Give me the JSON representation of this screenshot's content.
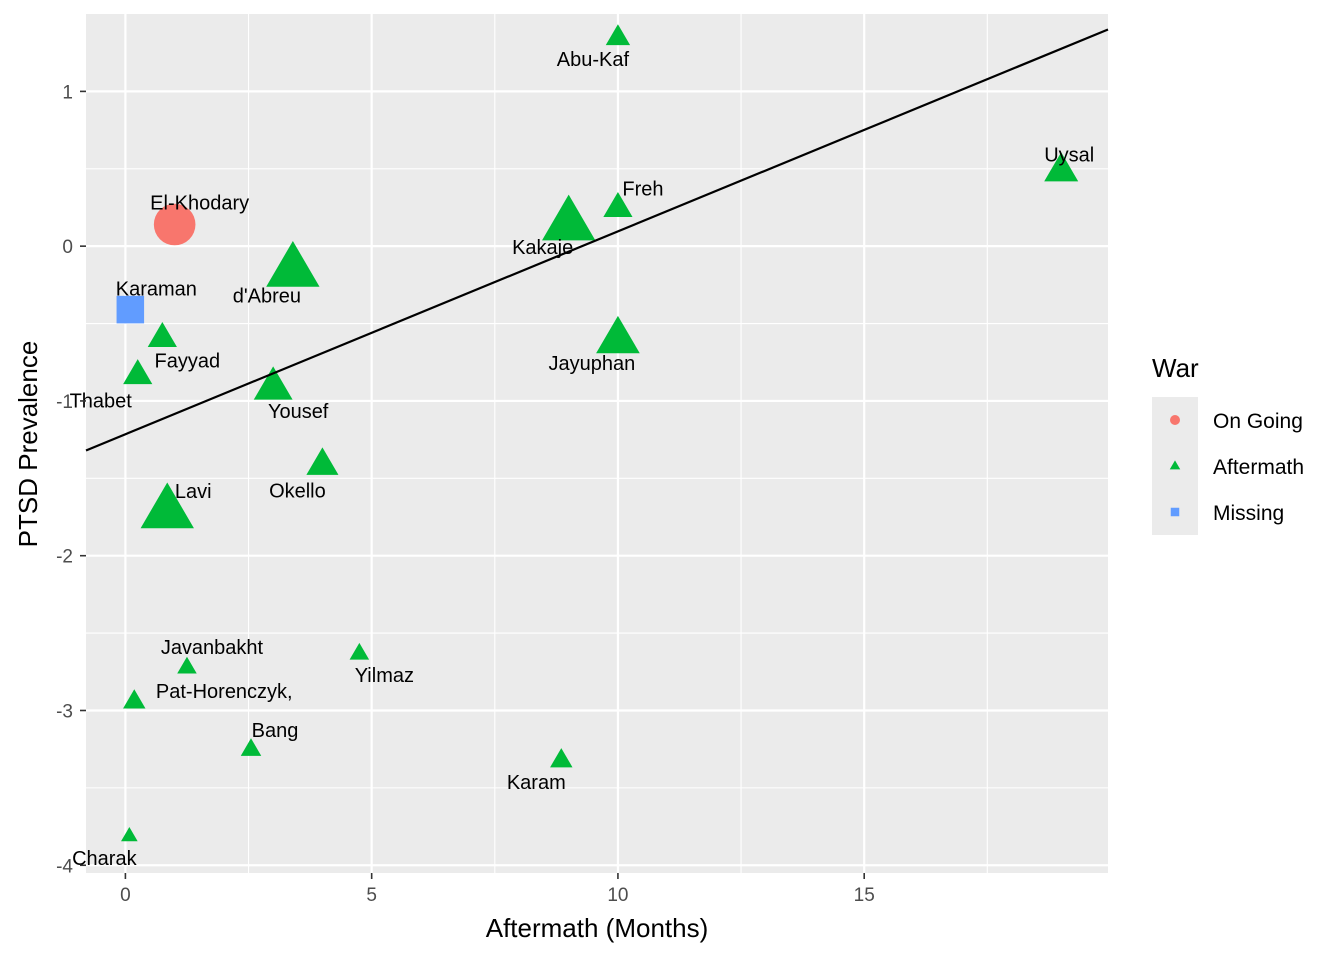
{
  "chart_data": {
    "type": "scatter",
    "title": "",
    "xlabel": "Aftermath (Months)",
    "ylabel": "PTSD Prevalence",
    "xlim": [
      -0.8,
      19.95
    ],
    "ylim": [
      -4.05,
      1.5
    ],
    "x_ticks": [
      0,
      5,
      10,
      15
    ],
    "y_ticks": [
      1,
      0,
      -1,
      -2,
      -3,
      -4
    ],
    "x_tick_labels": [
      "0",
      "5",
      "10",
      "15"
    ],
    "y_tick_labels": [
      "1",
      "0",
      "-1",
      "-2",
      "-3",
      "-4"
    ],
    "grid": true,
    "panel_background": "#ebebeb",
    "legend": {
      "title": "War",
      "position": "right",
      "entries": [
        {
          "label": "On Going",
          "shape": "circle",
          "color": "#f8766d"
        },
        {
          "label": "Aftermath",
          "shape": "triangle",
          "color": "#00ba38"
        },
        {
          "label": "Missing",
          "shape": "square",
          "color": "#619cff"
        }
      ]
    },
    "regression_line": {
      "color": "#000000",
      "x": [
        -0.8,
        19.95
      ],
      "y": [
        -1.32,
        1.4
      ]
    },
    "points": [
      {
        "label": "Abu-Kaf",
        "x": 10.0,
        "y": 1.35,
        "group": "Aftermath",
        "size": 1
      },
      {
        "label": "Uysal",
        "x": 19.0,
        "y": 0.49,
        "group": "Aftermath",
        "size": 2
      },
      {
        "label": "Freh",
        "x": 10.0,
        "y": 0.25,
        "group": "Aftermath",
        "size": 1.5
      },
      {
        "label": "El-Khodary",
        "x": 1.0,
        "y": 0.14,
        "group": "On Going",
        "size": 3
      },
      {
        "label": "Kakaje",
        "x": 9.0,
        "y": 0.15,
        "group": "Aftermath",
        "size": 4
      },
      {
        "label": "d'Abreu",
        "x": 3.4,
        "y": -0.15,
        "group": "Aftermath",
        "size": 4
      },
      {
        "label": "Karaman",
        "x": 0.1,
        "y": -0.41,
        "group": "Missing",
        "size": 2
      },
      {
        "label": "Fayyad",
        "x": 0.75,
        "y": -0.59,
        "group": "Aftermath",
        "size": 1.5
      },
      {
        "label": "Jayuphan",
        "x": 10.0,
        "y": -0.6,
        "group": "Aftermath",
        "size": 3
      },
      {
        "label": "Thabet",
        "x": 0.25,
        "y": -0.83,
        "group": "Aftermath",
        "size": 1.5
      },
      {
        "label": "Yousef",
        "x": 3.0,
        "y": -0.91,
        "group": "Aftermath",
        "size": 2.5
      },
      {
        "label": "Okello",
        "x": 4.0,
        "y": -1.41,
        "group": "Aftermath",
        "size": 1.8
      },
      {
        "label": "Lavi",
        "x": 0.85,
        "y": -1.71,
        "group": "Aftermath",
        "size": 4
      },
      {
        "label": "Yilmaz",
        "x": 4.75,
        "y": -2.63,
        "group": "Aftermath",
        "size": 0.5
      },
      {
        "label": "Javanbakht",
        "x": 1.25,
        "y": -2.72,
        "group": "Aftermath",
        "size": 0.5
      },
      {
        "label": "Pat-Horenczyk,",
        "x": 0.18,
        "y": -2.94,
        "group": "Aftermath",
        "size": 0.8
      },
      {
        "label": "Bang",
        "x": 2.55,
        "y": -3.25,
        "group": "Aftermath",
        "size": 0.6
      },
      {
        "label": "Karam",
        "x": 8.85,
        "y": -3.32,
        "group": "Aftermath",
        "size": 0.8
      },
      {
        "label": "Charak",
        "x": 0.08,
        "y": -3.81,
        "group": "Aftermath",
        "size": 0.2
      }
    ]
  }
}
